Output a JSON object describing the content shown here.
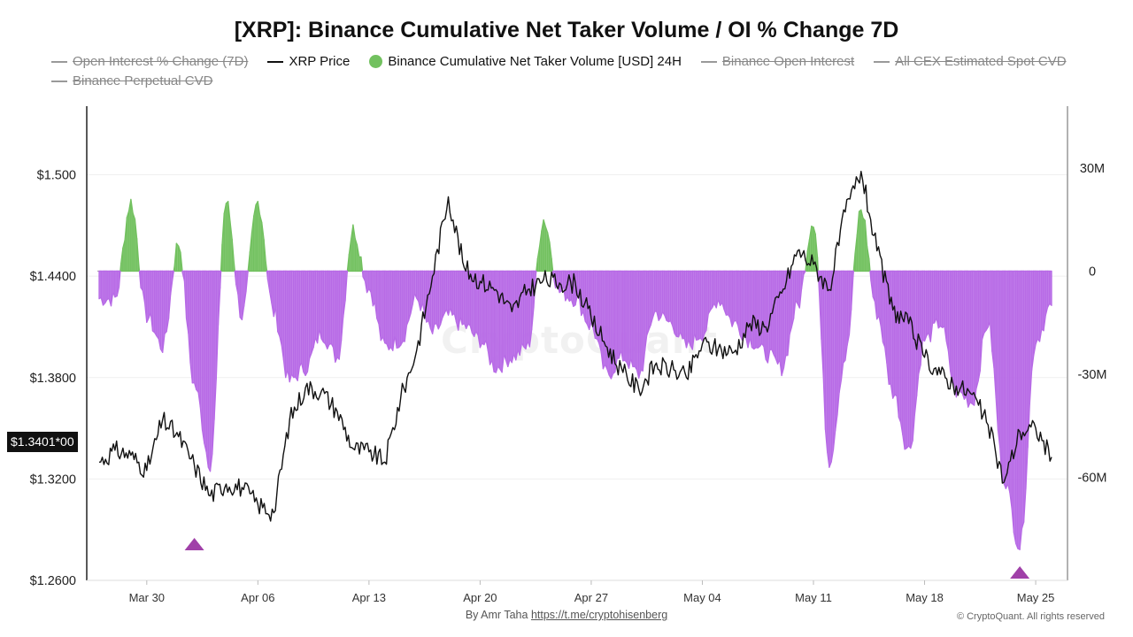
{
  "chart_data": {
    "type": "line",
    "title": "[XRP]: Binance Cumulative Net Taker Volume / OI % Change 7D",
    "legend": [
      {
        "label": "Open Interest % Change (7D)",
        "hidden": true,
        "marker": "line",
        "color": "#555555"
      },
      {
        "label": "XRP Price",
        "hidden": false,
        "marker": "line",
        "color": "#111111"
      },
      {
        "label": "Binance Cumulative Net Taker Volume [USD] 24H",
        "hidden": false,
        "marker": "dot",
        "color": "#72c15f"
      },
      {
        "label": "Binance Open Interest",
        "hidden": true,
        "marker": "line",
        "color": "#555555"
      },
      {
        "label": "All CEX Estimated Spot CVD",
        "hidden": true,
        "marker": "line",
        "color": "#555555"
      },
      {
        "label": "Binance Perpetual CVD",
        "hidden": true,
        "marker": "line",
        "color": "#555555"
      }
    ],
    "x_ticks": [
      "Mar 30",
      "Apr 06",
      "Apr 13",
      "Apr 20",
      "Apr 27",
      "May 04",
      "May 11",
      "May 18",
      "May 25"
    ],
    "x_range": [
      "2025-03-27",
      "2025-05-26"
    ],
    "left_axis": {
      "ticks": [
        "$1.2600",
        "$1.3200",
        "$1.3800",
        "$1.4400",
        "$1.500"
      ],
      "ylim": [
        1.26,
        1.5406
      ]
    },
    "right_axis": {
      "ticks": [
        "-60M",
        "-30M",
        "0",
        "30M"
      ],
      "ylim": [
        -90,
        48
      ]
    },
    "current_price_label": "$1.3401*00",
    "colors": {
      "positive": "#72c15f",
      "negative": "#b76ae6",
      "price": "#111111",
      "marker": "#a040a8"
    },
    "series": [
      {
        "name": "XRP Price",
        "axis": "left",
        "x": [
          "2025-03-27",
          "2025-03-28",
          "2025-03-29",
          "2025-03-30",
          "2025-03-31",
          "2025-04-01",
          "2025-04-02",
          "2025-04-03",
          "2025-04-04",
          "2025-04-05",
          "2025-04-06",
          "2025-04-07",
          "2025-04-08",
          "2025-04-09",
          "2025-04-10",
          "2025-04-11",
          "2025-04-12",
          "2025-04-13",
          "2025-04-14",
          "2025-04-15",
          "2025-04-16",
          "2025-04-17",
          "2025-04-18",
          "2025-04-19",
          "2025-04-20",
          "2025-04-21",
          "2025-04-22",
          "2025-04-23",
          "2025-04-24",
          "2025-04-25",
          "2025-04-26",
          "2025-04-27",
          "2025-04-28",
          "2025-04-29",
          "2025-04-30",
          "2025-05-01",
          "2025-05-02",
          "2025-05-03",
          "2025-05-04",
          "2025-05-05",
          "2025-05-06",
          "2025-05-07",
          "2025-05-08",
          "2025-05-09",
          "2025-05-10",
          "2025-05-11",
          "2025-05-12",
          "2025-05-13",
          "2025-05-14",
          "2025-05-15",
          "2025-05-16",
          "2025-05-17",
          "2025-05-18",
          "2025-05-19",
          "2025-05-20",
          "2025-05-21",
          "2025-05-22",
          "2025-05-23",
          "2025-05-24",
          "2025-05-25",
          "2025-05-26"
        ],
        "values": [
          1.33,
          1.337,
          1.334,
          1.325,
          1.355,
          1.345,
          1.328,
          1.31,
          1.317,
          1.315,
          1.305,
          1.3,
          1.355,
          1.374,
          1.372,
          1.36,
          1.338,
          1.336,
          1.33,
          1.368,
          1.396,
          1.44,
          1.487,
          1.445,
          1.437,
          1.432,
          1.419,
          1.432,
          1.438,
          1.436,
          1.436,
          1.415,
          1.398,
          1.383,
          1.373,
          1.387,
          1.385,
          1.38,
          1.4,
          1.397,
          1.395,
          1.412,
          1.41,
          1.43,
          1.455,
          1.447,
          1.432,
          1.478,
          1.502,
          1.455,
          1.42,
          1.412,
          1.392,
          1.382,
          1.375,
          1.37,
          1.352,
          1.318,
          1.348,
          1.35,
          1.333
        ]
      },
      {
        "name": "Binance Cumulative Net Taker Volume [USD] 24H",
        "axis": "right",
        "unit": "M USD",
        "x": [
          "2025-03-27",
          "2025-03-28",
          "2025-03-29",
          "2025-03-30",
          "2025-03-31",
          "2025-04-01",
          "2025-04-02",
          "2025-04-03",
          "2025-04-04",
          "2025-04-05",
          "2025-04-06",
          "2025-04-07",
          "2025-04-08",
          "2025-04-09",
          "2025-04-10",
          "2025-04-11",
          "2025-04-12",
          "2025-04-13",
          "2025-04-14",
          "2025-04-15",
          "2025-04-16",
          "2025-04-17",
          "2025-04-18",
          "2025-04-19",
          "2025-04-20",
          "2025-04-21",
          "2025-04-22",
          "2025-04-23",
          "2025-04-24",
          "2025-04-25",
          "2025-04-26",
          "2025-04-27",
          "2025-04-28",
          "2025-04-29",
          "2025-04-30",
          "2025-05-01",
          "2025-05-02",
          "2025-05-03",
          "2025-05-04",
          "2025-05-05",
          "2025-05-06",
          "2025-05-07",
          "2025-05-08",
          "2025-05-09",
          "2025-05-10",
          "2025-05-11",
          "2025-05-12",
          "2025-05-13",
          "2025-05-14",
          "2025-05-15",
          "2025-05-16",
          "2025-05-17",
          "2025-05-18",
          "2025-05-19",
          "2025-05-20",
          "2025-05-21",
          "2025-05-22",
          "2025-05-23",
          "2025-05-24",
          "2025-05-25",
          "2025-05-26"
        ],
        "values": [
          -8,
          -8,
          20,
          -13,
          -22,
          8,
          -33,
          -56,
          20,
          -13,
          20,
          -12,
          -32,
          -28,
          -18,
          -25,
          12,
          -5,
          -22,
          -20,
          -8,
          -18,
          -13,
          -16,
          -20,
          -28,
          -25,
          -22,
          15,
          -6,
          -8,
          -16,
          -30,
          -25,
          -30,
          -12,
          -15,
          -22,
          -18,
          -8,
          -15,
          -20,
          -24,
          -28,
          -10,
          15,
          -55,
          -25,
          18,
          -12,
          -35,
          -52,
          -20,
          -15,
          -35,
          -38,
          -15,
          -60,
          -80,
          -20,
          -10
        ]
      }
    ],
    "annotations": [
      {
        "type": "triangle-up",
        "x": "2025-04-02",
        "note": "local price low"
      },
      {
        "type": "triangle-up",
        "x": "2025-05-24",
        "note": "net taker volume low"
      }
    ]
  },
  "footer": {
    "by_prefix": "By Amr Taha",
    "by_link": "https://t.me/cryptohisenberg",
    "copyright": "© CryptoQuant. All rights reserved"
  },
  "watermark": "CryptoQuant"
}
